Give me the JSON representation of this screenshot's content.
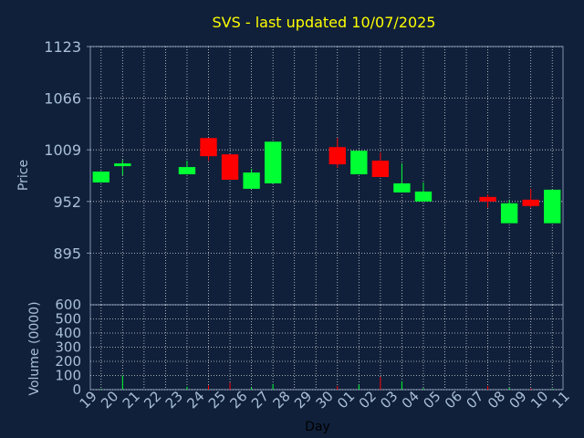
{
  "chart_data": {
    "type": "candlestick",
    "title": "SVS - last updated 10/07/2025",
    "xlabel": "Day",
    "price_panel": {
      "ylabel": "Price",
      "yticks": [
        895,
        952,
        1009,
        1066,
        1123
      ],
      "ylim": [
        838,
        1123
      ],
      "grid": true
    },
    "volume_panel": {
      "ylabel": "Volume (0000)",
      "yticks": [
        0,
        100,
        200,
        300,
        400,
        500,
        600
      ],
      "ylim": [
        0,
        600
      ],
      "grid": true
    },
    "x_tick_labels": [
      "19",
      "20",
      "21",
      "22",
      "23",
      "24",
      "25",
      "26",
      "27",
      "28",
      "29",
      "30",
      "01",
      "02",
      "03",
      "04",
      "05",
      "06",
      "07",
      "08",
      "09",
      "10",
      "11"
    ],
    "candles": [
      {
        "day": "19",
        "open": 973,
        "close": 985,
        "high": 985,
        "low": 973,
        "volume": 5
      },
      {
        "day": "20",
        "open": 991,
        "close": 994,
        "high": 998,
        "low": 981,
        "volume": 100
      },
      {
        "day": "23",
        "open": 982,
        "close": 990,
        "high": 997,
        "low": 982,
        "volume": 20
      },
      {
        "day": "24",
        "open": 1022,
        "close": 1002,
        "high": 1022,
        "low": 997,
        "volume": 30
      },
      {
        "day": "25",
        "open": 1004,
        "close": 976,
        "high": 1004,
        "low": 976,
        "volume": 50
      },
      {
        "day": "26",
        "open": 966,
        "close": 984,
        "high": 988,
        "low": 966,
        "volume": 15
      },
      {
        "day": "27",
        "open": 972,
        "close": 1018,
        "high": 1018,
        "low": 972,
        "volume": 40
      },
      {
        "day": "30",
        "open": 1012,
        "close": 993,
        "high": 1022,
        "low": 989,
        "volume": 25
      },
      {
        "day": "01",
        "open": 982,
        "close": 1008,
        "high": 1008,
        "low": 982,
        "volume": 35
      },
      {
        "day": "02",
        "open": 997,
        "close": 979,
        "high": 1006,
        "low": 979,
        "volume": 90
      },
      {
        "day": "03",
        "open": 962,
        "close": 972,
        "high": 994,
        "low": 962,
        "volume": 60
      },
      {
        "day": "04",
        "open": 952,
        "close": 963,
        "high": 973,
        "low": 952,
        "volume": 10
      },
      {
        "day": "07",
        "open": 957,
        "close": 952,
        "high": 960,
        "low": 945,
        "volume": 25
      },
      {
        "day": "08",
        "open": 928,
        "close": 950,
        "high": 954,
        "low": 928,
        "volume": 12
      },
      {
        "day": "09",
        "open": 954,
        "close": 947,
        "high": 966,
        "low": 945,
        "volume": 8
      },
      {
        "day": "10",
        "open": 928,
        "close": 965,
        "high": 965,
        "low": 928,
        "volume": 6
      }
    ]
  },
  "colors": {
    "background": "#10203a",
    "axis": "#7f8fae",
    "grid": "#ffffff",
    "title": "#ffff00",
    "labels": "#a9bfd9",
    "up": "#00ff33",
    "down": "#ff0000"
  }
}
